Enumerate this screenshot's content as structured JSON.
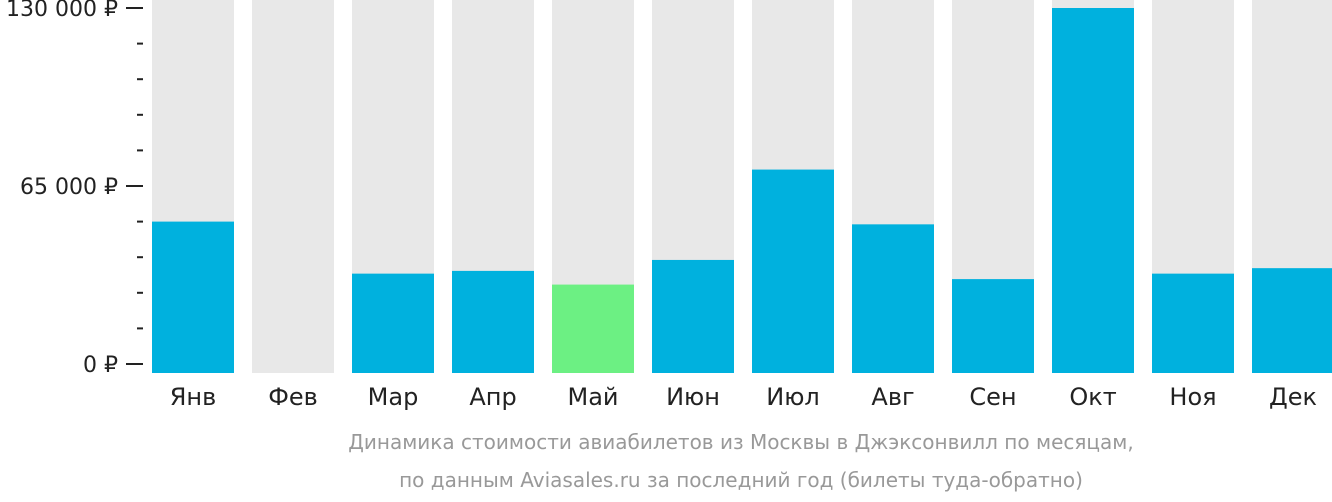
{
  "chart_data": {
    "type": "bar",
    "categories": [
      "Янв",
      "Фев",
      "Мар",
      "Апр",
      "Май",
      "Июн",
      "Июл",
      "Авг",
      "Сен",
      "Окт",
      "Ноя",
      "Дек"
    ],
    "values": [
      52000,
      0,
      33000,
      34000,
      29000,
      38000,
      71000,
      51000,
      31000,
      130000,
      33000,
      35000
    ],
    "highlight_index": 4,
    "ylim": [
      0,
      130000
    ],
    "yticks": [
      0,
      65000,
      130000
    ],
    "ytick_labels": [
      "0 ₽",
      "65 000 ₽",
      "130 000 ₽"
    ],
    "minor_ticks_per_interval": 4,
    "grid": false,
    "colors": {
      "bar": "#00b1de",
      "highlight": "#6cf083",
      "background_bar": "#e8e8e8",
      "text": "#222222",
      "caption": "#999999"
    }
  },
  "caption": {
    "line1": "Динамика стоимости авиабилетов из Москвы в Джэксонвилл по месяцам,",
    "line2": "по данным Aviasales.ru за последний год (билеты туда-обратно)"
  }
}
